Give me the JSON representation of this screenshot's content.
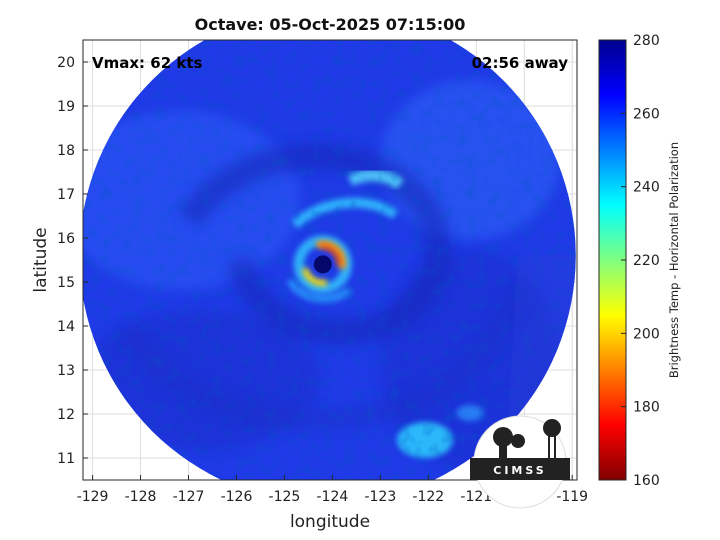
{
  "title": "Octave: 05-Oct-2025 07:15:00",
  "annotations": {
    "vmax": "Vmax: 62 kts",
    "time_away": "02:56 away"
  },
  "axes": {
    "xlabel": "longitude",
    "ylabel": "latitude",
    "x_range": [
      -129.2,
      -118.9
    ],
    "y_range": [
      10.5,
      20.5
    ],
    "x_ticks": [
      -129,
      -128,
      -127,
      -126,
      -125,
      -124,
      -123,
      -122,
      -121,
      -120,
      -119
    ],
    "y_ticks": [
      11,
      12,
      13,
      14,
      15,
      16,
      17,
      18,
      19,
      20
    ],
    "grid": true
  },
  "colorbar": {
    "label": "Brightness Temp - Horizontal Polarization",
    "range": [
      160,
      280
    ],
    "ticks": [
      160,
      180,
      200,
      220,
      240,
      260,
      280
    ],
    "colormap": "jet"
  },
  "image": {
    "kind": "passive microwave brightness temperature",
    "storm_center": {
      "lon": -124.2,
      "lat": 15.4
    },
    "swath_center": {
      "lon": -124.1,
      "lat": 15.6
    },
    "swath_radius_deg": 5.2,
    "ambient_temp": 259
  },
  "logo": {
    "text": "CIMSS"
  },
  "colors": {
    "axis": "#262626",
    "grid": "#dcdcdc",
    "background": "#ffffff"
  }
}
